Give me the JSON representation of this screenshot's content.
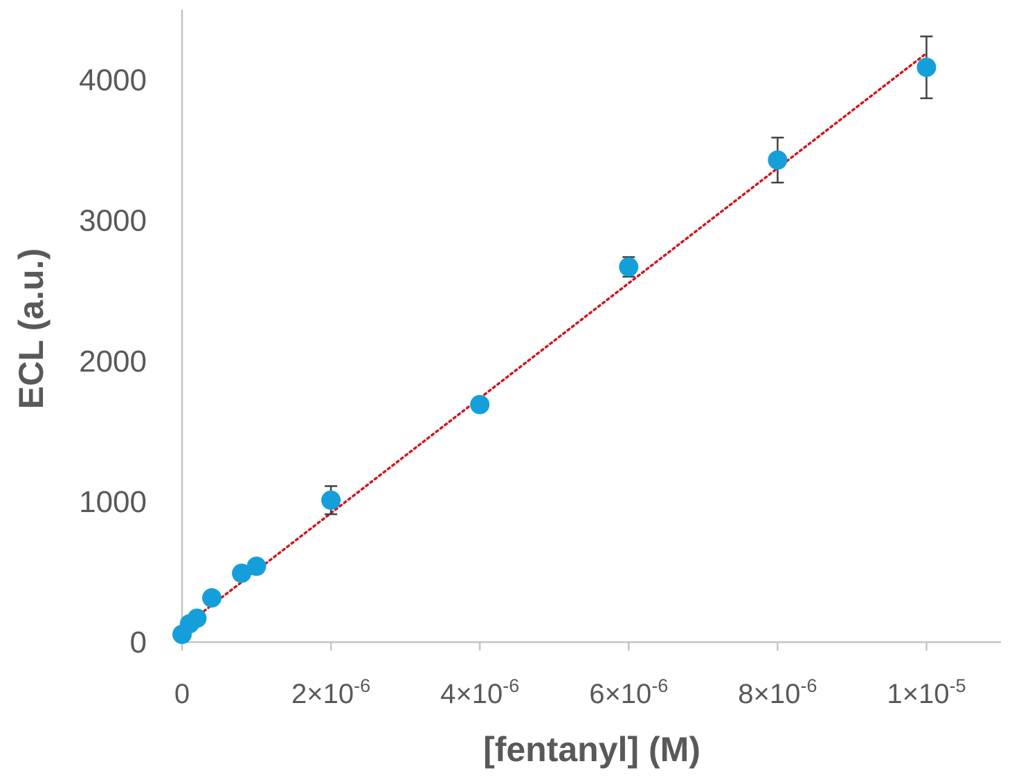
{
  "chart_data": {
    "type": "scatter",
    "title": "",
    "xlabel": "[fentanyl] (M)",
    "ylabel": "ECL (a.u.)",
    "xlim": [
      0,
      1.1e-05
    ],
    "ylim": [
      0,
      4500
    ],
    "x_ticks": [
      {
        "value": 0,
        "mantissa": "0",
        "exponent": ""
      },
      {
        "value": 2e-06,
        "mantissa": "2×10",
        "exponent": "-6"
      },
      {
        "value": 4e-06,
        "mantissa": "4×10",
        "exponent": "-6"
      },
      {
        "value": 6e-06,
        "mantissa": "6×10",
        "exponent": "-6"
      },
      {
        "value": 8e-06,
        "mantissa": "8×10",
        "exponent": "-6"
      },
      {
        "value": 1e-05,
        "mantissa": "1×10",
        "exponent": "-5"
      }
    ],
    "y_ticks": [
      0,
      1000,
      2000,
      3000,
      4000
    ],
    "grid": false,
    "legend": "none",
    "series": [
      {
        "color": "#149fda",
        "points": [
          {
            "x": 0,
            "y": 55,
            "err": 0
          },
          {
            "x": 1e-07,
            "y": 130,
            "err": 0
          },
          {
            "x": 2e-07,
            "y": 170,
            "err": 0
          },
          {
            "x": 4e-07,
            "y": 315,
            "err": 0
          },
          {
            "x": 8e-07,
            "y": 490,
            "err": 0
          },
          {
            "x": 1e-06,
            "y": 540,
            "err": 0
          },
          {
            "x": 2e-06,
            "y": 1010,
            "err": 100
          },
          {
            "x": 4e-06,
            "y": 1690,
            "err": 0
          },
          {
            "x": 6e-06,
            "y": 2670,
            "err": 70
          },
          {
            "x": 8e-06,
            "y": 3430,
            "err": 160
          },
          {
            "x": 1e-05,
            "y": 4090,
            "err": 220
          }
        ]
      }
    ],
    "trendline": {
      "style": "dotted",
      "color": "#d2161c",
      "x_range": [
        0,
        1e-05
      ],
      "y_range": [
        100,
        4190
      ]
    },
    "colors": {
      "axis": "#c4c4c4",
      "tick_text": "#595959",
      "label_text": "#595959",
      "error_bar": "#404040"
    }
  }
}
